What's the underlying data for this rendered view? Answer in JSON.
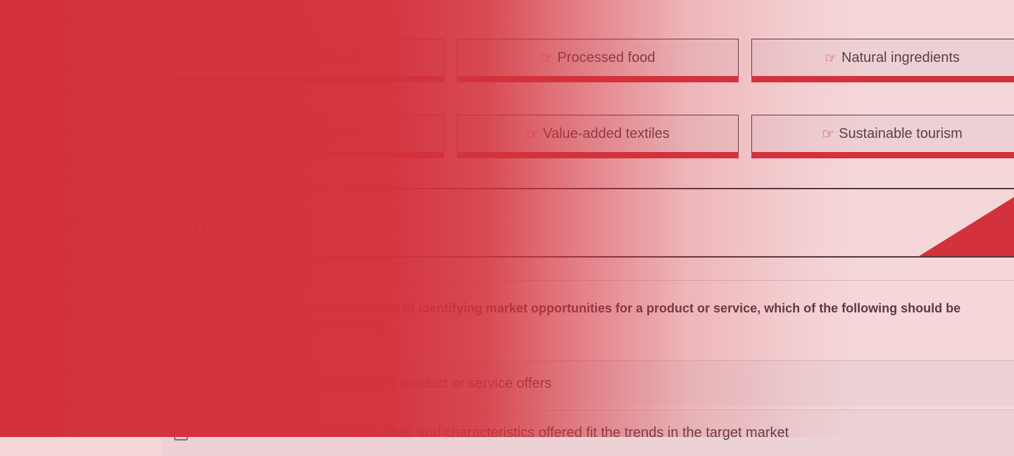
{
  "categories": [
    {
      "label": "Fish & seafood",
      "icon": "hand-point-right-icon"
    },
    {
      "label": "Processed food",
      "icon": "hand-point-right-icon"
    },
    {
      "label": "Natural ingredients",
      "icon": "hand-point-right-icon"
    },
    {
      "label": "Technical wood",
      "icon": "hand-point-right-icon"
    },
    {
      "label": "Value-added textiles",
      "icon": "hand-point-right-icon"
    },
    {
      "label": "Sustainable tourism",
      "icon": "hand-point-right-icon"
    }
  ],
  "section": {
    "heading": "Answer the question"
  },
  "question": {
    "icon": "question-circle-icon",
    "text": "When analysing information in view of identifying market opportunities for a product or service, which of the following should be included? (multiple options possible)"
  },
  "options": [
    {
      "label": "Which additional properties the product or service offers",
      "checked": false
    },
    {
      "label": "To which extent the functionalities and characteristics offered fit the trends in the target market",
      "checked": false
    }
  ],
  "colors": {
    "accent": "#d3323c",
    "text": "#5a3a44",
    "background": "#f5d7d9"
  }
}
